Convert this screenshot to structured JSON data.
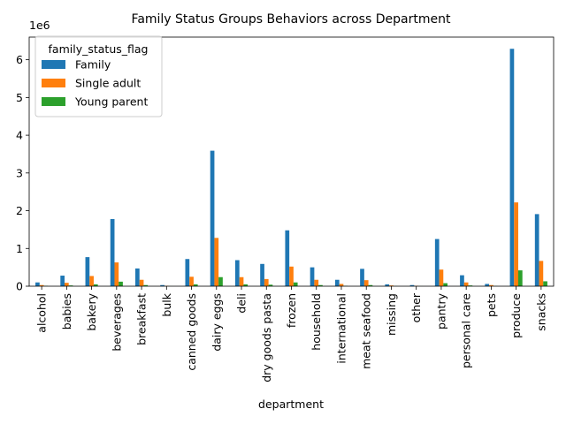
{
  "chart_data": {
    "type": "bar",
    "title": "Family Status Groups Behaviors across Department",
    "xlabel": "department",
    "ylabel": "",
    "y_multiplier_label": "1e6",
    "ylim": [
      0,
      6.6
    ],
    "yticks": [
      0,
      1,
      2,
      3,
      4,
      5,
      6
    ],
    "grid": false,
    "legend": {
      "title": "family_status_flag",
      "position": "top-left"
    },
    "categories": [
      "alcohol",
      "babies",
      "bakery",
      "beverages",
      "breakfast",
      "bulk",
      "canned goods",
      "dairy eggs",
      "deli",
      "dry goods pasta",
      "frozen",
      "household",
      "international",
      "meat seafood",
      "missing",
      "other",
      "pantry",
      "personal care",
      "pets",
      "produce",
      "snacks"
    ],
    "series": [
      {
        "name": "Family",
        "color": "#1f77b4",
        "values": [
          0.1,
          0.28,
          0.77,
          1.78,
          0.47,
          0.03,
          0.72,
          3.59,
          0.69,
          0.59,
          1.48,
          0.5,
          0.17,
          0.46,
          0.05,
          0.03,
          1.25,
          0.29,
          0.06,
          6.29,
          1.91
        ]
      },
      {
        "name": "Single adult",
        "color": "#ff7f0e",
        "values": [
          0.03,
          0.09,
          0.27,
          0.63,
          0.17,
          0.01,
          0.25,
          1.28,
          0.24,
          0.19,
          0.52,
          0.17,
          0.06,
          0.16,
          0.02,
          0.01,
          0.44,
          0.1,
          0.03,
          2.22,
          0.67
        ]
      },
      {
        "name": "Young parent",
        "color": "#2ca02c",
        "values": [
          0.01,
          0.02,
          0.05,
          0.12,
          0.03,
          0.002,
          0.05,
          0.24,
          0.05,
          0.04,
          0.1,
          0.03,
          0.01,
          0.03,
          0.004,
          0.002,
          0.08,
          0.02,
          0.005,
          0.42,
          0.13
        ]
      }
    ]
  }
}
